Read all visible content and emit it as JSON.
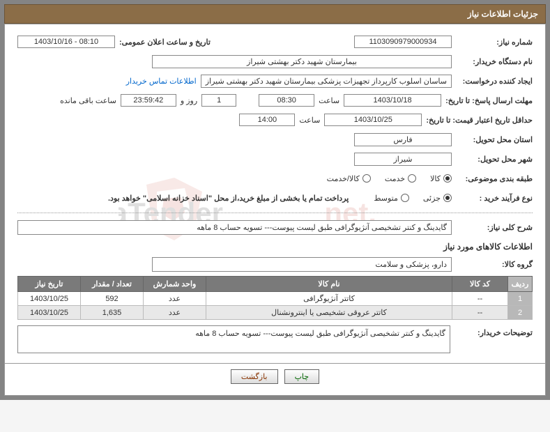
{
  "header": {
    "title": "جزئیات اطلاعات نیاز"
  },
  "labels": {
    "needNo": "شماره نیاز:",
    "announceDate": "تاریخ و ساعت اعلان عمومی:",
    "buyerOrg": "نام دستگاه خریدار:",
    "requester": "ایجاد کننده درخواست:",
    "contactLink": "اطلاعات تماس خریدار",
    "responseDeadline": "مهلت ارسال پاسخ: تا تاریخ:",
    "hourWord": "ساعت",
    "dayAnd": "روز و",
    "remaining": "ساعت باقی مانده",
    "priceValidDeadline": "حداقل تاریخ اعتبار قیمت: تا تاریخ:",
    "deliveryProvince": "استان محل تحویل:",
    "deliveryCity": "شهر محل تحویل:",
    "category": "طبقه بندی موضوعی:",
    "catGoods": "کالا",
    "catService": "خدمت",
    "catBoth": "کالا/خدمت",
    "purchaseType": "نوع فرآیند خرید :",
    "ptPartial": "جزئی",
    "ptMedium": "متوسط",
    "purchaseNote": "پرداخت تمام یا بخشی از مبلغ خرید،از محل \"اسناد خزانه اسلامی\" خواهد بود.",
    "needDesc": "شرح کلی نیاز:",
    "itemsTitle": "اطلاعات کالاهای مورد نیاز",
    "goodsGroup": "گروه کالا:",
    "buyerNotes": "توضیحات خریدار:",
    "btnPrint": "چاپ",
    "btnBack": "بازگشت"
  },
  "values": {
    "needNo": "1103090979000934",
    "announceDate": "1403/10/16 - 08:10",
    "buyerOrg": "بیمارستان شهید دکتر بهشتی شیراز",
    "requester": "ساسان اسلوب کارپرداز  تجهیزات پزشکی بیمارستان شهید دکتر بهشتی شیراز",
    "deadlineDate": "1403/10/18",
    "deadlineHour": "08:30",
    "remainDays": "1",
    "remainClock": "23:59:42",
    "priceDate": "1403/10/25",
    "priceHour": "14:00",
    "province": "فارس",
    "city": "شیراز",
    "needDescText": "گایدینگ و کنتر تشخیصی آنژیوگرافی طبق لیست پیوست--- تسویه حساب 8 ماهه",
    "goodsGroup": "دارو، پزشکی و سلامت",
    "buyerNotesText": "گایدینگ و کنتر تشخیصی آنژیوگرافی طبق لیست پیوست--- تسویه حساب 8 ماهه"
  },
  "table": {
    "columns": {
      "row": "ردیف",
      "code": "کد کالا",
      "name": "نام کالا",
      "unit": "واحد شمارش",
      "qty": "تعداد / مقدار",
      "date": "تاریخ نیاز"
    },
    "rows": [
      {
        "n": "1",
        "code": "--",
        "name": "کاتتر آنژیوگرافی",
        "unit": "عدد",
        "qty": "592",
        "date": "1403/10/25"
      },
      {
        "n": "2",
        "code": "--",
        "name": "کاتتر عروقی تشخیصی یا اینترونشنال",
        "unit": "عدد",
        "qty": "1,635",
        "date": "1403/10/25"
      }
    ]
  },
  "style": {
    "headerBg": "#8b6d47",
    "borderColor": "#888",
    "thBg": "#7a7a7a"
  }
}
